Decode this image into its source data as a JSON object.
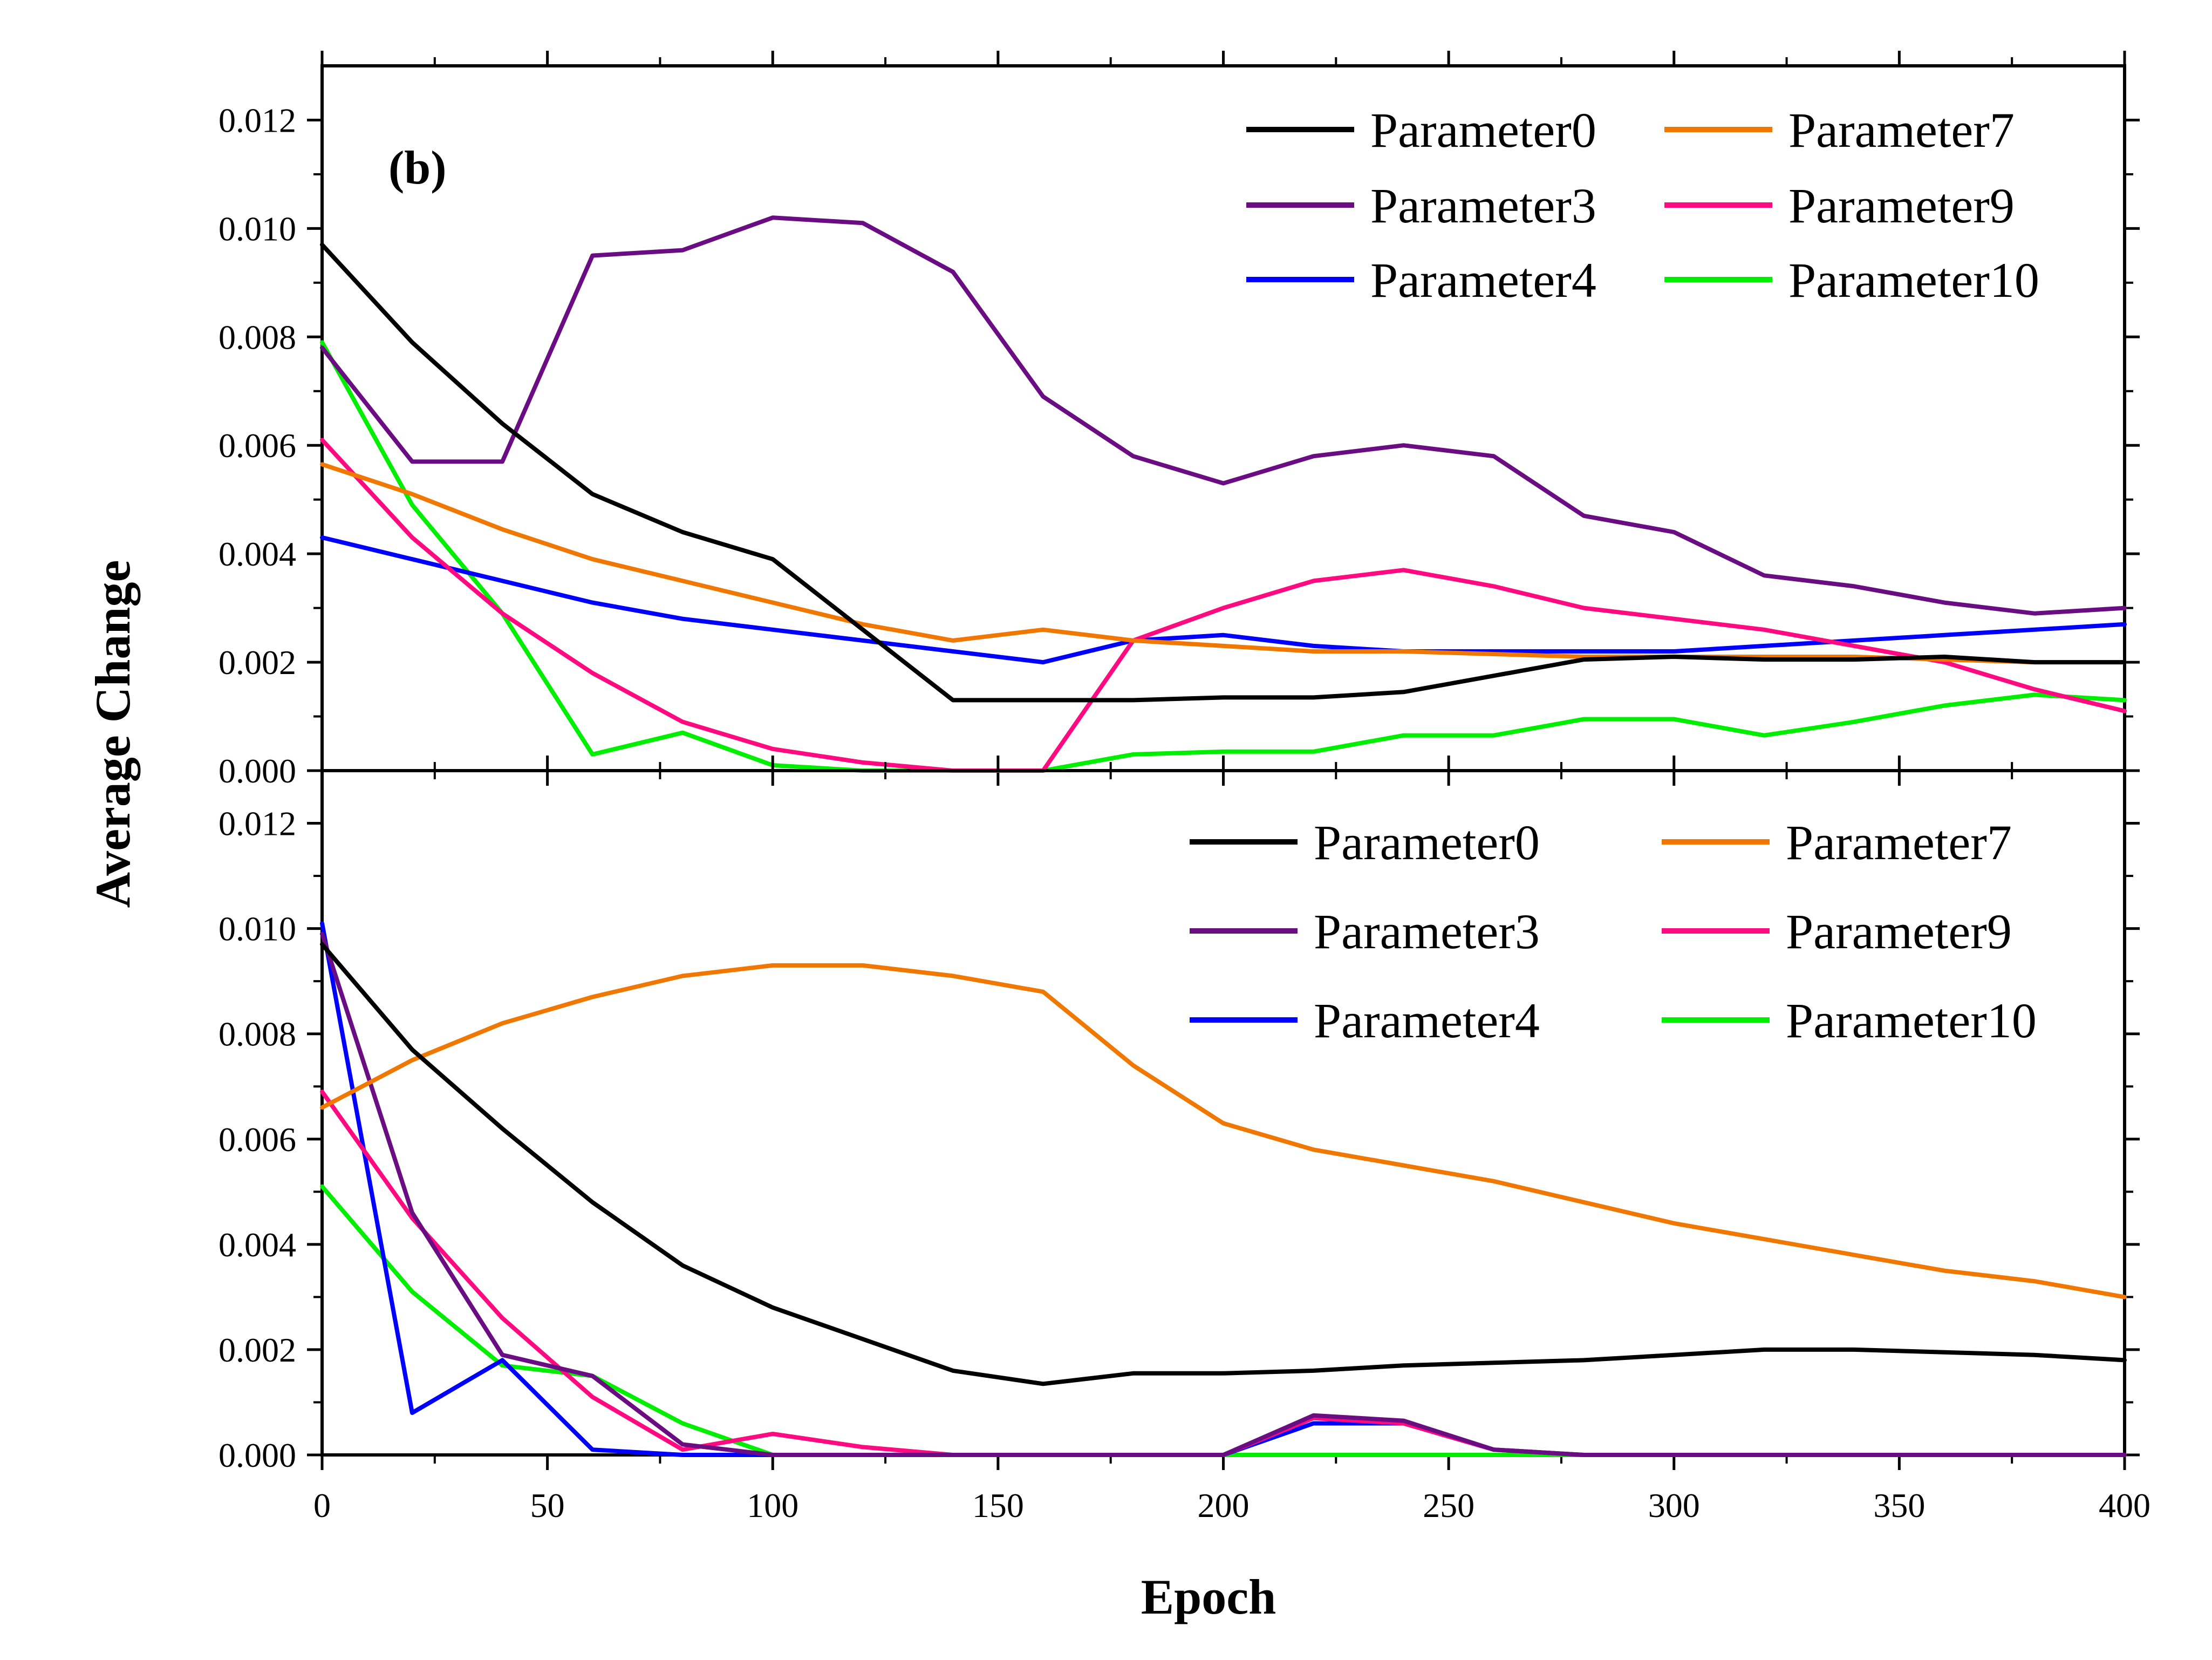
{
  "figure": {
    "xlabel": "Epoch",
    "ylabel": "Average Change",
    "panel_label": "(b)"
  },
  "colors": {
    "Parameter0": "#000000",
    "Parameter3": "#6a0d83",
    "Parameter4": "#0000ff",
    "Parameter7": "#f07800",
    "Parameter9": "#ff0a80",
    "Parameter10": "#00ee00"
  },
  "chart_data": [
    {
      "type": "line",
      "xlim": [
        0,
        400
      ],
      "ylim": [
        0,
        0.013
      ],
      "xticks": [
        0,
        50,
        100,
        150,
        200,
        250,
        300,
        350,
        400
      ],
      "yticks": [
        "0.000",
        "0.002",
        "0.004",
        "0.006",
        "0.008",
        "0.010",
        "0.012"
      ],
      "legend": "top-right",
      "x": [
        0,
        20,
        40,
        60,
        80,
        100,
        120,
        140,
        160,
        180,
        200,
        220,
        240,
        260,
        280,
        300,
        320,
        340,
        360,
        380,
        400
      ],
      "series": [
        {
          "name": "Parameter0",
          "values": [
            0.0097,
            0.0079,
            0.0064,
            0.0051,
            0.0044,
            0.0039,
            0.0026,
            0.0013,
            0.0013,
            0.0013,
            0.00135,
            0.00135,
            0.00145,
            0.00175,
            0.00205,
            0.0021,
            0.00205,
            0.00205,
            0.0021,
            0.002,
            0.002
          ]
        },
        {
          "name": "Parameter7",
          "values": [
            0.00565,
            0.0051,
            0.00445,
            0.0039,
            0.0035,
            0.0031,
            0.0027,
            0.0024,
            0.0026,
            0.0024,
            0.0023,
            0.0022,
            0.0022,
            0.00215,
            0.0021,
            0.0021,
            0.0021,
            0.0021,
            0.00205,
            0.002,
            0.002
          ]
        },
        {
          "name": "Parameter3",
          "values": [
            0.0078,
            0.0057,
            0.0057,
            0.0095,
            0.0096,
            0.0102,
            0.0101,
            0.0092,
            0.0069,
            0.0058,
            0.0053,
            0.0058,
            0.006,
            0.0058,
            0.0047,
            0.0044,
            0.0036,
            0.0034,
            0.0031,
            0.0029,
            0.003
          ]
        },
        {
          "name": "Parameter9",
          "values": [
            0.0061,
            0.0043,
            0.0029,
            0.0018,
            0.0009,
            0.0004,
            0.00015,
            0.0,
            0.0,
            0.0024,
            0.003,
            0.0035,
            0.0037,
            0.0034,
            0.003,
            0.0028,
            0.0026,
            0.0023,
            0.002,
            0.0015,
            0.0011
          ]
        },
        {
          "name": "Parameter4",
          "values": [
            0.0043,
            0.0039,
            0.0035,
            0.0031,
            0.0028,
            0.0026,
            0.0024,
            0.0022,
            0.002,
            0.0024,
            0.0025,
            0.0023,
            0.0022,
            0.0022,
            0.0022,
            0.0022,
            0.0023,
            0.0024,
            0.0025,
            0.0026,
            0.0027
          ]
        },
        {
          "name": "Parameter10",
          "values": [
            0.0079,
            0.0049,
            0.0029,
            0.0003,
            0.0007,
            0.0001,
            0.0,
            0.0,
            0.0,
            0.0003,
            0.00035,
            0.00035,
            0.00065,
            0.00065,
            0.00095,
            0.00095,
            0.00065,
            0.0009,
            0.0012,
            0.0014,
            0.0013
          ]
        }
      ]
    },
    {
      "type": "line",
      "xlim": [
        0,
        400
      ],
      "ylim": [
        0,
        0.013
      ],
      "xticks": [
        0,
        50,
        100,
        150,
        200,
        250,
        300,
        350,
        400
      ],
      "yticks": [
        "0.000",
        "0.002",
        "0.004",
        "0.006",
        "0.008",
        "0.010",
        "0.012"
      ],
      "legend": "top-right",
      "x": [
        0,
        20,
        40,
        60,
        80,
        100,
        120,
        140,
        160,
        180,
        200,
        220,
        240,
        260,
        280,
        300,
        320,
        340,
        360,
        380,
        400
      ],
      "series": [
        {
          "name": "Parameter0",
          "values": [
            0.0097,
            0.0077,
            0.0062,
            0.0048,
            0.0036,
            0.0028,
            0.0022,
            0.0016,
            0.00135,
            0.00155,
            0.00155,
            0.0016,
            0.0017,
            0.00175,
            0.0018,
            0.0019,
            0.002,
            0.002,
            0.00195,
            0.0019,
            0.0018
          ]
        },
        {
          "name": "Parameter7",
          "values": [
            0.0066,
            0.0075,
            0.0082,
            0.0087,
            0.0091,
            0.0093,
            0.0093,
            0.0091,
            0.0088,
            0.0074,
            0.0063,
            0.0058,
            0.0055,
            0.0052,
            0.0048,
            0.0044,
            0.0041,
            0.0038,
            0.0035,
            0.0033,
            0.003
          ]
        },
        {
          "name": "Parameter3",
          "values": [
            0.0099,
            0.0046,
            0.0019,
            0.0015,
            0.0002,
            0.0,
            0.0,
            0.0,
            0.0,
            0.0,
            0.0,
            0.00075,
            0.00065,
            0.0001,
            0.0,
            0.0,
            0.0,
            0.0,
            0.0,
            0.0,
            0.0
          ]
        },
        {
          "name": "Parameter9",
          "values": [
            0.0069,
            0.0045,
            0.0026,
            0.0011,
            0.0001,
            0.0004,
            0.00015,
            0.0,
            0.0,
            0.0,
            0.0,
            0.0007,
            0.0006,
            0.0001,
            0.0,
            0.0,
            0.0,
            0.0,
            0.0,
            0.0,
            0.0
          ]
        },
        {
          "name": "Parameter4",
          "values": [
            0.0101,
            0.0008,
            0.0018,
            0.0001,
            0.0,
            0.0,
            0.0,
            0.0,
            0.0,
            0.0,
            0.0,
            0.0006,
            0.0006,
            0.0001,
            0.0,
            0.0,
            0.0,
            0.0,
            0.0,
            0.0,
            0.0
          ]
        },
        {
          "name": "Parameter10",
          "values": [
            0.0051,
            0.0031,
            0.0017,
            0.0015,
            0.0006,
            0.0,
            0.0,
            0.0,
            0.0,
            0.0,
            0.0,
            0.0,
            0.0,
            0.0,
            0.0,
            0.0,
            0.0,
            0.0,
            0.0,
            0.0,
            0.0
          ]
        }
      ]
    }
  ]
}
